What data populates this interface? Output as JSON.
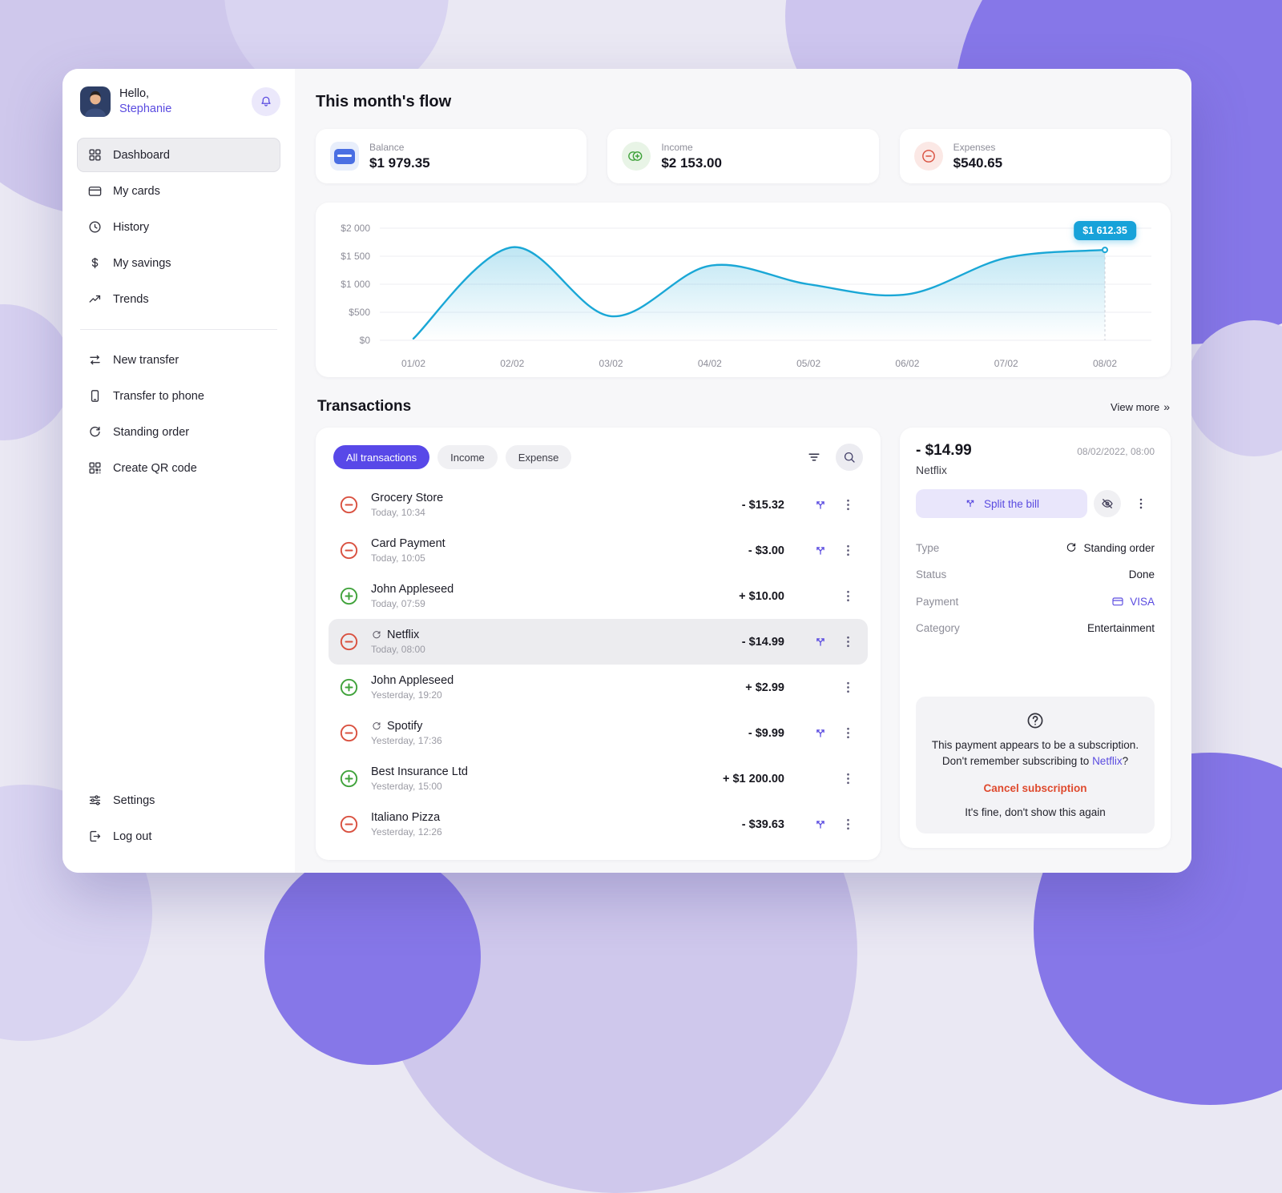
{
  "colors": {
    "accent": "#5848e8",
    "income_green": "#3fa23a",
    "expense_red": "#d9503f",
    "chart_line": "#1aa7d6",
    "cancel_red": "#df4a2e"
  },
  "sidebar": {
    "greeting": "Hello,",
    "username": "Stephanie",
    "menu": [
      {
        "label": "Dashboard",
        "icon": "dashboard-grid",
        "active": true
      },
      {
        "label": "My cards",
        "icon": "cards",
        "active": false
      },
      {
        "label": "History",
        "icon": "history-clock",
        "active": false
      },
      {
        "label": "My savings",
        "icon": "savings-dollar",
        "active": false
      },
      {
        "label": "Trends",
        "icon": "trends",
        "active": false
      }
    ],
    "actions": [
      {
        "label": "New transfer",
        "icon": "new-transfer",
        "active": false
      },
      {
        "label": "Transfer to phone",
        "icon": "phone",
        "active": false
      },
      {
        "label": "Standing order",
        "icon": "standing-order",
        "active": false
      },
      {
        "label": "Create QR code",
        "icon": "qr-code",
        "active": false
      }
    ],
    "footer": [
      {
        "label": "Settings",
        "icon": "settings-sliders",
        "active": false
      },
      {
        "label": "Log out",
        "icon": "logout",
        "active": false
      }
    ]
  },
  "header": {
    "title": "This month's flow"
  },
  "stats": [
    {
      "label": "Balance",
      "value": "$1 979.35",
      "icon": "balance-card",
      "fg": "#4a6fe3",
      "bg": "#e8eefb"
    },
    {
      "label": "Income",
      "value": "$2 153.00",
      "icon": "coins",
      "fg": "#3fa23a",
      "bg": "#e8f4e6"
    },
    {
      "label": "Expenses",
      "value": "$540.65",
      "icon": "minus-circle",
      "fg": "#d9503f",
      "bg": "#fbe8e5"
    }
  ],
  "chart_data": {
    "type": "line",
    "x": [
      "01/02",
      "02/02",
      "03/02",
      "04/02",
      "05/02",
      "06/02",
      "07/02",
      "08/02"
    ],
    "values": [
      30,
      1660,
      430,
      1330,
      1000,
      820,
      1470,
      1612.35
    ],
    "ylim": [
      0,
      2000
    ],
    "y_ticks": [
      {
        "value": 2000,
        "label": "$2 000"
      },
      {
        "value": 1500,
        "label": "$1 500"
      },
      {
        "value": 1000,
        "label": "$1 000"
      },
      {
        "value": 500,
        "label": "$500"
      },
      {
        "value": 0,
        "label": "$0"
      }
    ],
    "grid": true,
    "legend": "none",
    "line_color": "#1aa7d6",
    "tooltip": {
      "label": "$1 612.35",
      "x_index": 7
    }
  },
  "transactions": {
    "title": "Transactions",
    "view_more": "View more",
    "filters": [
      {
        "label": "All transactions",
        "active": true
      },
      {
        "label": "Income",
        "active": false
      },
      {
        "label": "Expense",
        "active": false
      }
    ],
    "items": [
      {
        "name": "Grocery Store",
        "time": "Today, 10:34",
        "amount": "- $15.32",
        "direction": "expense",
        "recurring": false,
        "splittable": true,
        "selected": false
      },
      {
        "name": "Card Payment",
        "time": "Today, 10:05",
        "amount": "- $3.00",
        "direction": "expense",
        "recurring": false,
        "splittable": true,
        "selected": false
      },
      {
        "name": "John Appleseed",
        "time": "Today, 07:59",
        "amount": "+ $10.00",
        "direction": "income",
        "recurring": false,
        "splittable": false,
        "selected": false
      },
      {
        "name": "Netflix",
        "time": "Today, 08:00",
        "amount": "- $14.99",
        "direction": "expense",
        "recurring": true,
        "splittable": true,
        "selected": true
      },
      {
        "name": "John Appleseed",
        "time": "Yesterday, 19:20",
        "amount": "+ $2.99",
        "direction": "income",
        "recurring": false,
        "splittable": false,
        "selected": false
      },
      {
        "name": "Spotify",
        "time": "Yesterday, 17:36",
        "amount": "- $9.99",
        "direction": "expense",
        "recurring": true,
        "splittable": true,
        "selected": false
      },
      {
        "name": "Best Insurance Ltd",
        "time": "Yesterday, 15:00",
        "amount": "+ $1 200.00",
        "direction": "income",
        "recurring": false,
        "splittable": false,
        "selected": false
      },
      {
        "name": "Italiano Pizza",
        "time": "Yesterday, 12:26",
        "amount": "- $39.63",
        "direction": "expense",
        "recurring": false,
        "splittable": true,
        "selected": false
      }
    ]
  },
  "detail": {
    "amount": "- $14.99",
    "datetime": "08/02/2022, 08:00",
    "merchant": "Netflix",
    "split_button": "Split the bill",
    "fields": [
      {
        "label": "Type",
        "value": "Standing order",
        "icon": "standing-order",
        "accent": false
      },
      {
        "label": "Status",
        "value": "Done",
        "icon": "",
        "accent": false
      },
      {
        "label": "Payment",
        "value": "VISA",
        "icon": "cards",
        "accent": true
      },
      {
        "label": "Category",
        "value": "Entertainment",
        "icon": "",
        "accent": false
      }
    ],
    "subscription_note": {
      "line1": "This payment appears to be a subscription.",
      "line2_prefix": "Don't remember subscribing to ",
      "line2_link": "Netflix",
      "line2_suffix": "?",
      "cancel_label": "Cancel subscription",
      "dismiss_label": "It's fine, don't show this again"
    }
  }
}
